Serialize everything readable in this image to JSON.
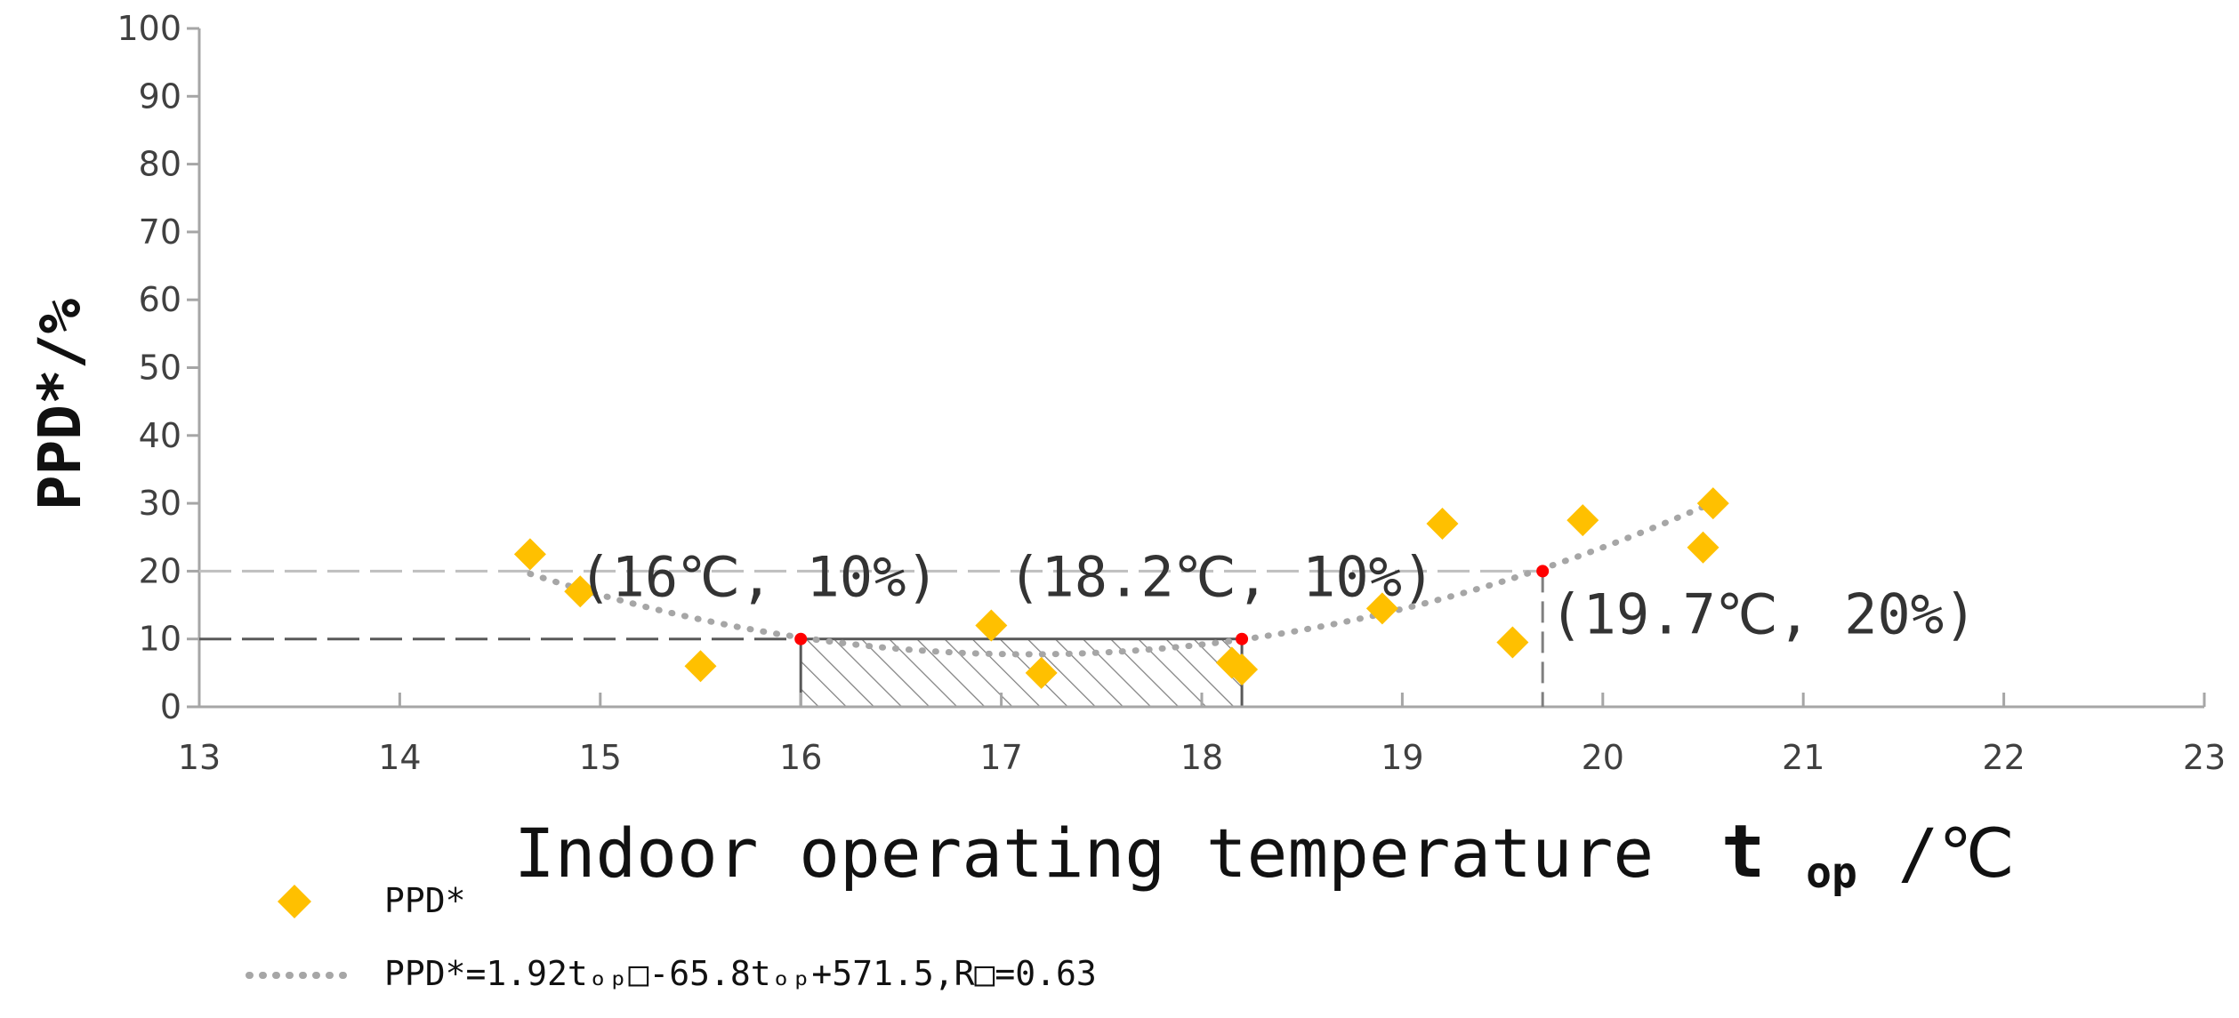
{
  "chart_data": {
    "type": "scatter",
    "xlabel": "Indoor operating temperature",
    "xlabel_sub": "op",
    "xlabel_unit": "/℃",
    "xlabel_symbol": "t",
    "ylabel": "PPD*/%",
    "xlim": [
      13,
      23
    ],
    "ylim": [
      0,
      100
    ],
    "x_ticks": [
      13,
      14,
      15,
      16,
      17,
      18,
      19,
      20,
      21,
      22,
      23
    ],
    "y_ticks": [
      0,
      10,
      20,
      30,
      40,
      50,
      60,
      70,
      80,
      90,
      100
    ],
    "grid": false,
    "legend_position": "bottom-left",
    "series": [
      {
        "name": "PPD*",
        "marker": "diamond",
        "color": "#FFC000",
        "points": [
          {
            "x": 14.65,
            "y": 22.5
          },
          {
            "x": 14.9,
            "y": 17
          },
          {
            "x": 15.5,
            "y": 6
          },
          {
            "x": 16.95,
            "y": 12
          },
          {
            "x": 17.2,
            "y": 5
          },
          {
            "x": 18.15,
            "y": 6.5
          },
          {
            "x": 18.2,
            "y": 5.5
          },
          {
            "x": 18.9,
            "y": 14.5
          },
          {
            "x": 19.2,
            "y": 27
          },
          {
            "x": 19.55,
            "y": 9.5
          },
          {
            "x": 19.9,
            "y": 27.5
          },
          {
            "x": 20.5,
            "y": 23.5
          },
          {
            "x": 20.55,
            "y": 30
          }
        ]
      },
      {
        "name": "PPD*=1.92tₒₚ□-65.8tₒₚ+571.5,R□=0.63",
        "type": "trendline",
        "style": "dotted",
        "color": "#A6A6A6",
        "coefficients": {
          "a": 1.92,
          "b": -65.8,
          "c": 571.5
        },
        "x_range": [
          14.65,
          20.6
        ]
      }
    ],
    "annotations": [
      {
        "text": "(16℃, 10%)",
        "x": 16,
        "y": 10
      },
      {
        "text": "(18.2℃, 10%)",
        "x": 18.2,
        "y": 10
      },
      {
        "text": "(19.7℃, 20%)",
        "x": 19.7,
        "y": 20
      }
    ],
    "reference_lines": [
      {
        "y": 20,
        "x_end": 19.7,
        "color": "#BFBFBF"
      },
      {
        "y": 10,
        "x_end": 16,
        "color": "#595959"
      }
    ],
    "comfort_range": {
      "x_start": 16,
      "x_end": 18.2,
      "y_top": 10
    },
    "highlight_points": [
      {
        "x": 16,
        "y": 10
      },
      {
        "x": 18.2,
        "y": 10
      },
      {
        "x": 19.7,
        "y": 20
      }
    ],
    "highlight_color": "#FF0000"
  }
}
